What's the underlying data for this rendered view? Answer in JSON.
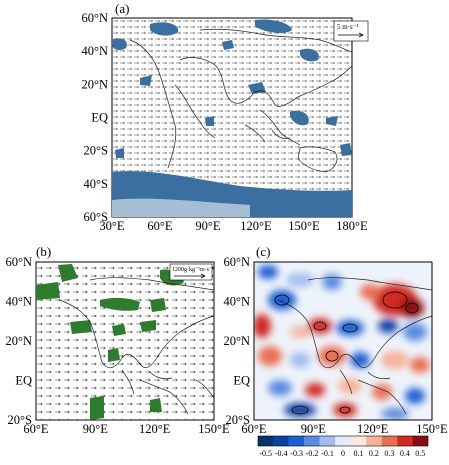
{
  "panel_a": {
    "label": "(a)",
    "lat_ticks": [
      "60°N",
      "40°N",
      "20°N",
      "EQ",
      "20°S",
      "40°S",
      "60°S"
    ],
    "lon_ticks": [
      "30°E",
      "60°E",
      "90°E",
      "120°E",
      "150°E",
      "180°E"
    ],
    "ref_vector": "5 m·s⁻¹",
    "shade_color": "#3a6f9f"
  },
  "panel_b": {
    "label": "(b)",
    "lat_ticks": [
      "60°N",
      "40°N",
      "20°N",
      "EQ",
      "20°S"
    ],
    "lon_ticks": [
      "60°E",
      "90°E",
      "120°E",
      "150°E"
    ],
    "ref_vector": "1200g·kg⁻¹m·s⁻¹",
    "shade_color": "#2e7d2e"
  },
  "panel_c": {
    "label": "(c)",
    "lat_ticks": [
      "60°N",
      "40°N",
      "20°N",
      "EQ",
      "20°S"
    ],
    "lon_ticks": [
      "60°E",
      "90°E",
      "120°E",
      "150°E"
    ],
    "colorbar_labels": [
      "-0.5",
      "-0.4",
      "-0.3",
      "-0.2",
      "-0.1",
      "0",
      "0.1",
      "0.2",
      "0.3",
      "0.4",
      "0.5"
    ],
    "colorbar_colors": [
      "#08306b",
      "#0b3fa0",
      "#1e5fd0",
      "#5a8be0",
      "#a3bdee",
      "#e3ebf8",
      "#fde8df",
      "#f6b39b",
      "#ea7052",
      "#d02c21",
      "#8b0d10"
    ]
  }
}
